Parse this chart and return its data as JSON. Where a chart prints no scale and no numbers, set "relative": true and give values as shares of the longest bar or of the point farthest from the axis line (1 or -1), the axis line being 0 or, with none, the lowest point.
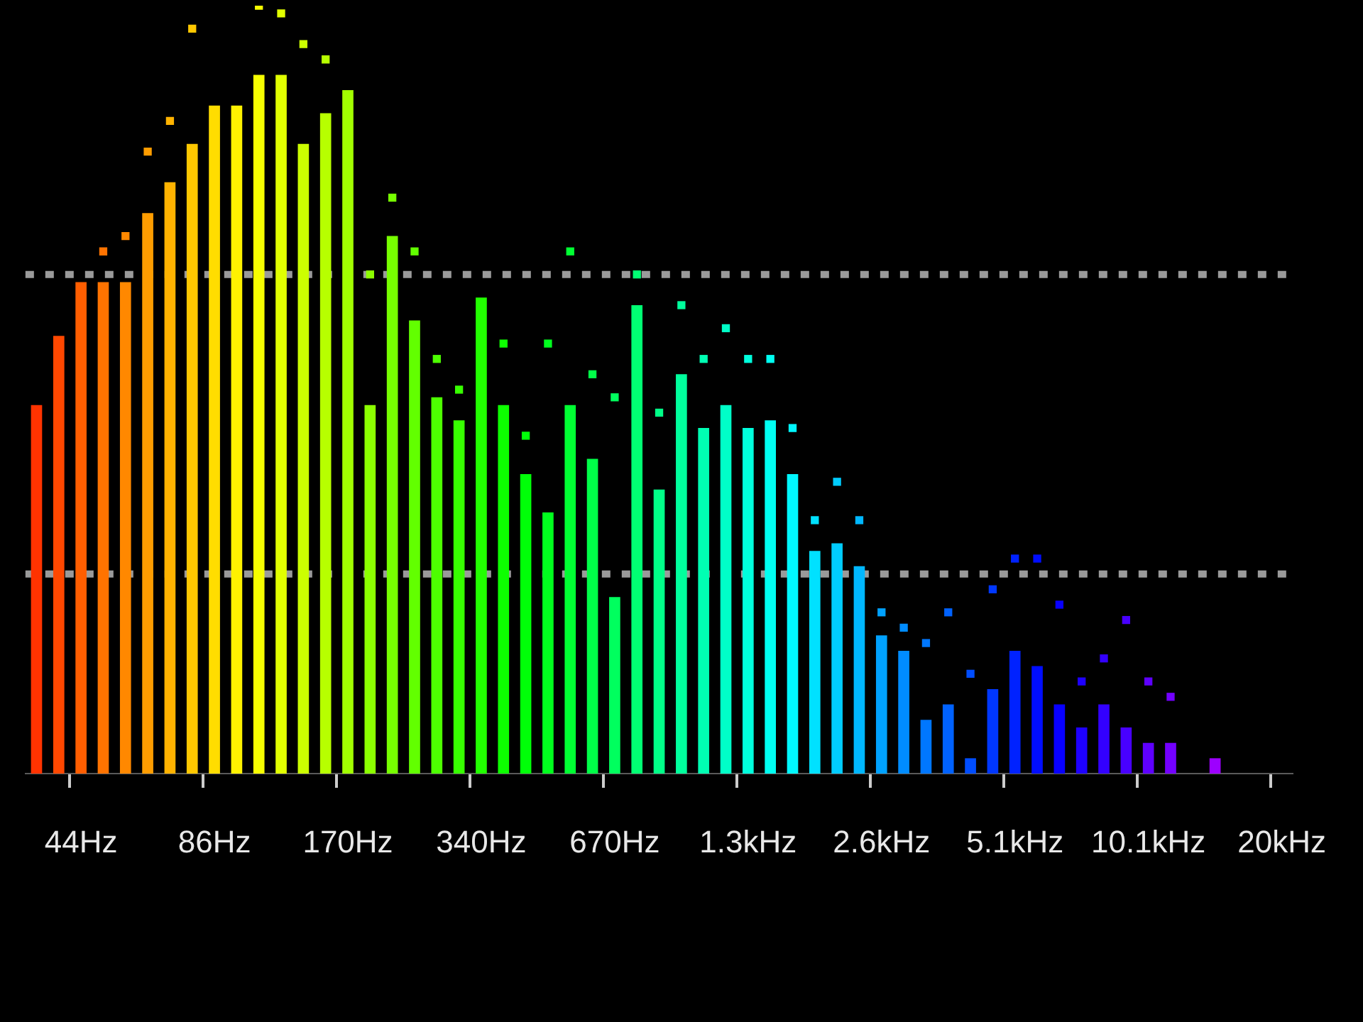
{
  "chart_data": {
    "type": "bar",
    "relative": true,
    "legend": false,
    "categories": [
      null,
      null,
      "44Hz",
      null,
      null,
      null,
      null,
      null,
      "86Hz",
      null,
      null,
      null,
      null,
      null,
      "170Hz",
      null,
      null,
      null,
      null,
      null,
      "340Hz",
      null,
      null,
      null,
      null,
      null,
      "670Hz",
      null,
      null,
      null,
      null,
      null,
      "1.3kHz",
      null,
      null,
      null,
      null,
      null,
      "2.6kHz",
      null,
      null,
      null,
      null,
      null,
      "5.1kHz",
      null,
      null,
      null,
      null,
      null,
      "10.1kHz",
      null,
      null,
      null,
      null,
      null,
      "20kHz"
    ],
    "series": [
      {
        "colors": [
          "#ff3300",
          "#ff4800",
          "#ff5e00",
          "#ff7300",
          "#ff8800",
          "#ff9d00",
          "#ffb300",
          "#ffc800",
          "#ffdd00",
          "#fff200",
          "#f7ff00",
          "#e1ff00",
          "#ccff00",
          "#b7ff00",
          "#a2ff00",
          "#8cff00",
          "#77ff00",
          "#62ff00",
          "#4dff00",
          "#37ff00",
          "#22ff00",
          "#0dff00",
          "#00ff08",
          "#00ff1e",
          "#00ff33",
          "#00ff48",
          "#00ff5e",
          "#00ff73",
          "#00ff88",
          "#00ff9d",
          "#00ffb3",
          "#00ffc8",
          "#00ffdd",
          "#00fff2",
          "#00f7ff",
          "#00e1ff",
          "#00ccff",
          "#00b7ff",
          "#00a2ff",
          "#008cff",
          "#0077ff",
          "#0062ff",
          "#004dff",
          "#0037ff",
          "#0022ff",
          "#000dff",
          "#0800ff",
          "#1e00ff",
          "#3300ff",
          "#4800ff",
          "#5e00ff",
          "#7300ff",
          "#8800ff",
          "#9d00ff",
          "#9d00ff",
          "#9d00ff",
          "#9d00ff"
        ],
        "values": [
          0.48,
          0.57,
          0.64,
          0.64,
          0.64,
          0.73,
          0.77,
          0.82,
          0.87,
          0.87,
          0.91,
          0.91,
          0.82,
          0.86,
          0.89,
          0.48,
          0.7,
          0.59,
          0.49,
          0.46,
          0.62,
          0.48,
          0.39,
          0.34,
          0.48,
          0.41,
          0.23,
          0.61,
          0.37,
          0.52,
          0.45,
          0.48,
          0.45,
          0.46,
          0.39,
          0.29,
          0.3,
          0.27,
          0.18,
          0.16,
          0.07,
          0.09,
          0.02,
          0.11,
          0.16,
          0.14,
          0.09,
          0.06,
          0.09,
          0.06,
          0.04,
          0.04,
          null,
          0.02,
          null,
          null,
          null
        ]
      },
      {
        "type": "scatter",
        "marker": "square",
        "colors": [
          "#ff3300",
          "#ff4800",
          "#ff5e00",
          "#ff7300",
          "#ff8800",
          "#ff9d00",
          "#ffb300",
          "#ffc800",
          "#ffdd00",
          "#fff200",
          "#f7ff00",
          "#e1ff00",
          "#ccff00",
          "#b7ff00",
          "#a2ff00",
          "#8cff00",
          "#77ff00",
          "#62ff00",
          "#4dff00",
          "#37ff00",
          "#22ff00",
          "#0dff00",
          "#00ff08",
          "#00ff1e",
          "#00ff33",
          "#00ff48",
          "#00ff5e",
          "#00ff73",
          "#00ff88",
          "#00ff9d",
          "#00ffb3",
          "#00ffc8",
          "#00ffdd",
          "#00fff2",
          "#00f7ff",
          "#00e1ff",
          "#00ccff",
          "#00b7ff",
          "#00a2ff",
          "#008cff",
          "#0077ff",
          "#0062ff",
          "#004dff",
          "#0037ff",
          "#0022ff",
          "#000dff",
          "#0800ff",
          "#1e00ff",
          "#3300ff",
          "#4800ff",
          "#5e00ff",
          "#7300ff",
          "#8800ff",
          "#9d00ff",
          "#9d00ff",
          "#9d00ff",
          "#9d00ff"
        ],
        "values": [
          null,
          null,
          null,
          0.68,
          0.7,
          0.81,
          0.85,
          0.97,
          null,
          null,
          1,
          0.99,
          0.95,
          0.93,
          null,
          0.65,
          0.75,
          0.68,
          0.54,
          0.5,
          null,
          0.56,
          0.44,
          0.56,
          0.68,
          0.52,
          0.49,
          0.65,
          0.47,
          0.61,
          0.54,
          0.58,
          0.54,
          0.54,
          0.45,
          0.33,
          0.38,
          0.33,
          0.21,
          0.19,
          0.17,
          0.21,
          0.13,
          0.24,
          0.28,
          0.28,
          0.22,
          0.12,
          0.15,
          0.2,
          0.12,
          0.1,
          null,
          null,
          null,
          null,
          null
        ]
      }
    ],
    "ref_lines": [
      {
        "axis": "y",
        "value": 0.65,
        "color": "#9a9a9a",
        "line_style": "dotted"
      },
      {
        "axis": "y",
        "value": 0.26,
        "color": "#9a9a9a",
        "line_style": "dotted"
      }
    ]
  }
}
